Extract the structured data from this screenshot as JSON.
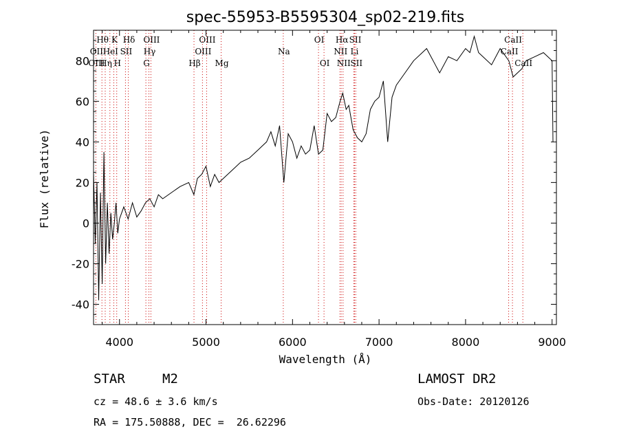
{
  "chart_data": {
    "type": "line",
    "title": "spec-55953-B5595304_sp02-219.fits",
    "xlabel": "Wavelength (Å)",
    "ylabel": "Flux (relative)",
    "xlim": [
      3700,
      9050
    ],
    "ylim": [
      -50,
      95
    ],
    "x_ticks": [
      4000,
      5000,
      6000,
      7000,
      8000,
      9000
    ],
    "y_ticks": [
      -40,
      -20,
      0,
      20,
      40,
      60,
      80
    ],
    "series": [
      {
        "color": "#000000",
        "x": [
          3700,
          3720,
          3740,
          3760,
          3780,
          3800,
          3820,
          3840,
          3860,
          3880,
          3900,
          3920,
          3940,
          3960,
          3980,
          4000,
          4050,
          4100,
          4150,
          4200,
          4250,
          4300,
          4350,
          4400,
          4450,
          4500,
          4600,
          4700,
          4800,
          4860,
          4900,
          4950,
          5000,
          5050,
          5100,
          5150,
          5200,
          5300,
          5400,
          5500,
          5600,
          5700,
          5750,
          5800,
          5850,
          5900,
          5950,
          6000,
          6050,
          6100,
          6150,
          6200,
          6250,
          6300,
          6350,
          6400,
          6450,
          6500,
          6550,
          6580,
          6620,
          6650,
          6700,
          6750,
          6800,
          6850,
          6900,
          6950,
          7000,
          7050,
          7100,
          7150,
          7200,
          7300,
          7400,
          7500,
          7550,
          7600,
          7650,
          7700,
          7800,
          7900,
          8000,
          8050,
          8100,
          8150,
          8200,
          8300,
          8400,
          8500,
          8550,
          8600,
          8650,
          8700,
          8800,
          8900,
          8950,
          9000,
          9010
        ],
        "y": [
          25,
          -10,
          20,
          -38,
          15,
          -30,
          35,
          -20,
          10,
          -15,
          5,
          -8,
          0,
          10,
          -5,
          2,
          8,
          2,
          10,
          3,
          6,
          10,
          12,
          8,
          14,
          12,
          15,
          18,
          20,
          14,
          22,
          24,
          28,
          18,
          24,
          20,
          22,
          26,
          30,
          32,
          36,
          40,
          45,
          38,
          48,
          20,
          44,
          40,
          32,
          38,
          34,
          36,
          48,
          34,
          36,
          54,
          50,
          52,
          60,
          64,
          56,
          58,
          46,
          42,
          40,
          44,
          56,
          60,
          62,
          70,
          40,
          62,
          68,
          74,
          80,
          84,
          86,
          82,
          78,
          74,
          82,
          80,
          86,
          84,
          92,
          84,
          82,
          78,
          86,
          80,
          72,
          74,
          76,
          80,
          82,
          84,
          82,
          80,
          40
        ]
      }
    ],
    "line_labels": [
      {
        "text": "Hθ",
        "x": 3797
      },
      {
        "text": "K",
        "x": 3934
      },
      {
        "text": "Hδ",
        "x": 4102
      },
      {
        "text": "OIII",
        "x": 4363
      },
      {
        "text": "OIII",
        "x": 5007
      },
      {
        "text": "OI",
        "x": 6300
      },
      {
        "text": "Hα",
        "x": 6563
      },
      {
        "text": "SII",
        "x": 6717
      },
      {
        "text": "CaII",
        "x": 8542
      },
      {
        "text": "OII",
        "x": 3727
      },
      {
        "text": "HeI",
        "x": 3889
      },
      {
        "text": "SII",
        "x": 4069
      },
      {
        "text": "Hγ",
        "x": 4340
      },
      {
        "text": "OIII",
        "x": 4959
      },
      {
        "text": "Na",
        "x": 5893
      },
      {
        "text": "NII",
        "x": 6548
      },
      {
        "text": "Li",
        "x": 6708
      },
      {
        "text": "CaII",
        "x": 8498
      },
      {
        "text": "OIII",
        "x": 3727
      },
      {
        "text": "Hη",
        "x": 3835
      },
      {
        "text": "H",
        "x": 3968
      },
      {
        "text": "G",
        "x": 4305
      },
      {
        "text": "Hβ",
        "x": 4861
      },
      {
        "text": "Mg",
        "x": 5175
      },
      {
        "text": "OI",
        "x": 6364
      },
      {
        "text": "NII",
        "x": 6584
      },
      {
        "text": "SII",
        "x": 6731
      },
      {
        "text": "CaII",
        "x": 8662
      }
    ],
    "marker_lines": [
      3727,
      3797,
      3835,
      3889,
      3934,
      3968,
      4069,
      4102,
      4305,
      4340,
      4363,
      4861,
      4959,
      5007,
      5175,
      5893,
      6300,
      6364,
      6548,
      6563,
      6584,
      6708,
      6717,
      6731,
      8498,
      8542,
      8662
    ],
    "marker_color": "#cc0000"
  },
  "info": {
    "object_class": "STAR",
    "subclass": "M2",
    "survey": "LAMOST DR2",
    "cz": "cz = 48.6 ± 3.6 km/s",
    "obs_date": "Obs-Date: 20120126",
    "coords": "RA = 175.50888, DEC =  26.62296"
  }
}
